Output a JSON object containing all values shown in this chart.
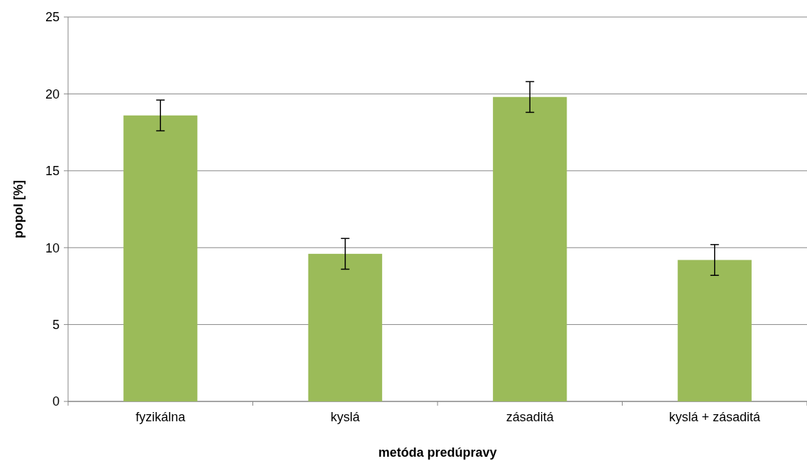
{
  "chart_data": {
    "type": "bar",
    "xlabel": "metóda predúpravy",
    "ylabel": "popol [%]",
    "categories": [
      "fyzikálna",
      "kyslá",
      "zásaditá",
      "kyslá + zásaditá"
    ],
    "values": [
      18.6,
      9.6,
      19.8,
      9.2
    ],
    "errors": [
      1.0,
      1.0,
      1.0,
      1.0
    ],
    "color": "#9bbb59",
    "ylim": [
      0,
      25
    ],
    "yticks": [
      0,
      5,
      10,
      15,
      20,
      25
    ],
    "grid": "y"
  }
}
